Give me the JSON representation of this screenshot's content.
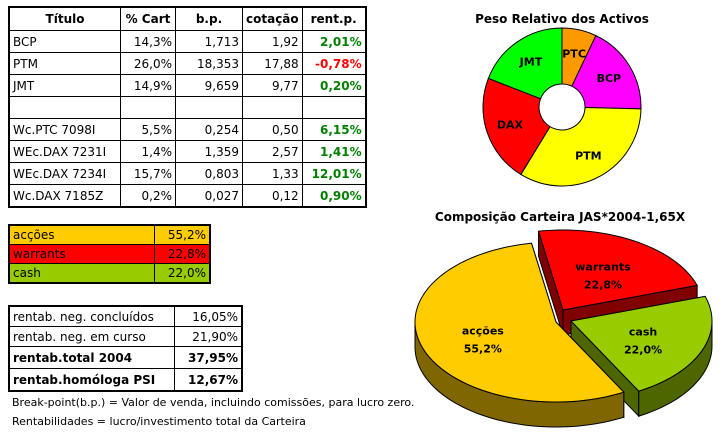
{
  "holdings": {
    "headers": [
      "Título",
      "% Cart",
      "b.p.",
      "cotação",
      "rent.p."
    ],
    "rows": [
      [
        "BCP",
        "14,3%",
        "1,713",
        "1,92",
        "2,01%"
      ],
      [
        "PTM",
        "26,0%",
        "18,353",
        "17,88",
        "-0,78%"
      ],
      [
        "JMT",
        "14,9%",
        "9,659",
        "9,77",
        "0,20%"
      ],
      [
        "",
        "",
        "",
        "",
        ""
      ],
      [
        "Wc.PTC 7098I",
        "5,5%",
        "0,254",
        "0,50",
        "6,15%"
      ],
      [
        "WEc.DAX 7231I",
        "1,4%",
        "1,359",
        "2,57",
        "1,41%"
      ],
      [
        "WEc.DAX 7234I",
        "15,7%",
        "0,803",
        "1,33",
        "12,01%"
      ],
      [
        "Wc.DAX 7185Z",
        "0,2%",
        "0,027",
        "0,12",
        "0,90%"
      ]
    ]
  },
  "allocation": [
    {
      "label": "acções",
      "value": "55,2%",
      "color": "#ffcc00"
    },
    {
      "label": "warrants",
      "value": "22,8%",
      "color": "#ff0000"
    },
    {
      "label": "cash",
      "value": "22,0%",
      "color": "#99cc00"
    }
  ],
  "returns": [
    {
      "label": "rentab. neg. concluídos",
      "value": "16,05%"
    },
    {
      "label": "rentab. neg. em curso",
      "value": "21,90%"
    },
    {
      "label": "rentab.total 2004",
      "value": "37,95%"
    },
    {
      "label": "rentab.homóloga PSI",
      "value": "12,67%"
    }
  ],
  "notes": [
    "Break-point(b.p.) = Valor de venda, incluindo comissões, para lucro zero.",
    "Rentabilidades = lucro/investimento total da Carteira"
  ],
  "colors": {
    "positive": "#008000",
    "negative": "#ff0000"
  },
  "chart_data": [
    {
      "type": "pie",
      "variant": "doughnut",
      "title": "Peso Relativo dos Activos",
      "categories": [
        "PTC",
        "BCP",
        "PTM",
        "DAX",
        "JMT"
      ],
      "values": [
        5.5,
        14.3,
        26.0,
        17.3,
        14.9
      ],
      "colors": [
        "#ff9900",
        "#ff00ff",
        "#ffff00",
        "#ff0000",
        "#00ff00"
      ]
    },
    {
      "type": "pie",
      "variant": "3d-exploded",
      "title": "Composição Carteira JAS*2004-1,65X",
      "categories": [
        "acções",
        "warrants",
        "cash"
      ],
      "values": [
        55.2,
        22.8,
        22.0
      ],
      "labels": [
        "55,2%",
        "22,8%",
        "22,0%"
      ],
      "colors": [
        "#ffcc00",
        "#ff0000",
        "#99cc00"
      ],
      "side_colors": [
        "#806600",
        "#800000",
        "#4d6600"
      ]
    }
  ]
}
